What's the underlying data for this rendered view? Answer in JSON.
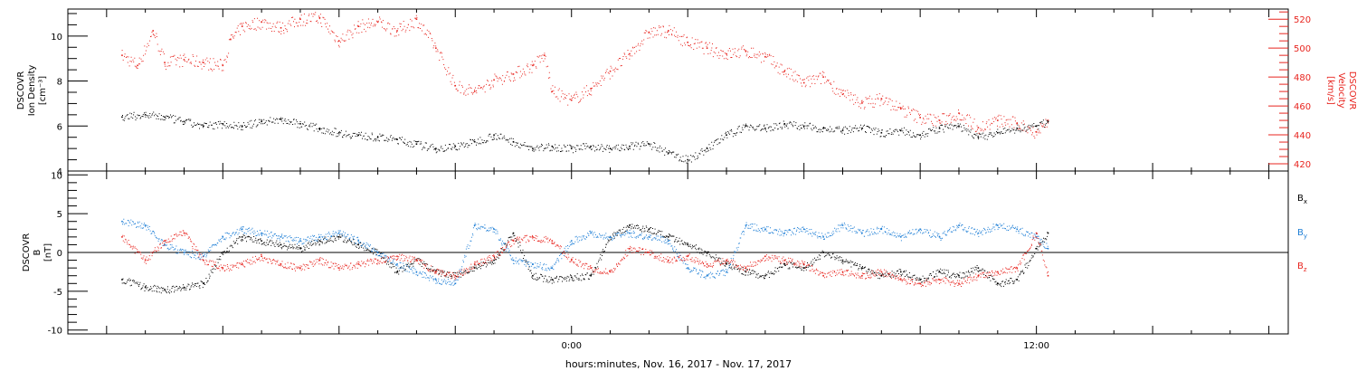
{
  "figure": {
    "xlabel": "hours:minutes, Nov. 16, 2017 - Nov. 17, 2017",
    "x_ticks": [
      "0:00",
      "12:00"
    ]
  },
  "chart_data": [
    {
      "type": "scatter",
      "panel": "top",
      "ylabel_left": [
        "DSCOVR",
        "Ion Density",
        "[cm⁻³]"
      ],
      "ylabel_right": [
        "DSCOVR",
        "Velocity",
        "[km/s]"
      ],
      "ylim_left": [
        4,
        11.2
      ],
      "ylim_right": [
        415,
        527
      ],
      "yticks_left": [
        "4",
        "6",
        "8",
        "10"
      ],
      "yticks_right": [
        "420",
        "440",
        "460",
        "480",
        "500",
        "520"
      ],
      "x_range_hours": [
        -13,
        18.5
      ],
      "series": [
        {
          "role": "density",
          "axis": "left",
          "color": "#000000",
          "points": [
            [
              -11.6,
              6.4
            ],
            [
              -11.0,
              6.5
            ],
            [
              -10.5,
              6.4
            ],
            [
              -10.0,
              6.2
            ],
            [
              -9.5,
              6.0
            ],
            [
              -9.0,
              6.1
            ],
            [
              -8.5,
              6.0
            ],
            [
              -8.0,
              6.2
            ],
            [
              -7.5,
              6.3
            ],
            [
              -7.0,
              6.1
            ],
            [
              -6.5,
              5.9
            ],
            [
              -6.0,
              5.7
            ],
            [
              -5.5,
              5.6
            ],
            [
              -5.0,
              5.5
            ],
            [
              -4.5,
              5.4
            ],
            [
              -4.0,
              5.2
            ],
            [
              -3.5,
              5.0
            ],
            [
              -3.0,
              5.1
            ],
            [
              -2.5,
              5.3
            ],
            [
              -2.0,
              5.6
            ],
            [
              -1.5,
              5.3
            ],
            [
              -1.0,
              5.0
            ],
            [
              -0.5,
              5.1
            ],
            [
              0.0,
              5.0
            ],
            [
              0.5,
              5.1
            ],
            [
              1.0,
              5.0
            ],
            [
              1.5,
              5.1
            ],
            [
              2.0,
              5.2
            ],
            [
              2.5,
              4.8
            ],
            [
              3.0,
              4.5
            ],
            [
              3.5,
              5.0
            ],
            [
              4.0,
              5.6
            ],
            [
              4.5,
              6.0
            ],
            [
              5.0,
              5.9
            ],
            [
              5.5,
              6.1
            ],
            [
              6.0,
              6.0
            ],
            [
              6.5,
              5.9
            ],
            [
              7.0,
              5.8
            ],
            [
              7.5,
              5.9
            ],
            [
              8.0,
              5.7
            ],
            [
              8.5,
              5.8
            ],
            [
              9.0,
              5.6
            ],
            [
              9.5,
              5.9
            ],
            [
              10.0,
              6.0
            ],
            [
              10.5,
              5.5
            ],
            [
              11.0,
              5.7
            ],
            [
              11.5,
              5.9
            ],
            [
              12.0,
              6.0
            ],
            [
              12.3,
              6.2
            ]
          ]
        },
        {
          "role": "velocity",
          "axis": "right",
          "color": "#e8251f",
          "points": [
            [
              -11.6,
              495
            ],
            [
              -11.2,
              488
            ],
            [
              -10.8,
              512
            ],
            [
              -10.5,
              490
            ],
            [
              -10.0,
              492
            ],
            [
              -9.5,
              490
            ],
            [
              -9.0,
              488
            ],
            [
              -8.8,
              506
            ],
            [
              -8.5,
              515
            ],
            [
              -8.0,
              518
            ],
            [
              -7.5,
              514
            ],
            [
              -7.0,
              520
            ],
            [
              -6.5,
              521
            ],
            [
              -6.0,
              505
            ],
            [
              -5.5,
              515
            ],
            [
              -5.0,
              518
            ],
            [
              -4.5,
              512
            ],
            [
              -4.0,
              520
            ],
            [
              -3.5,
              500
            ],
            [
              -3.0,
              474
            ],
            [
              -2.5,
              470
            ],
            [
              -2.0,
              478
            ],
            [
              -1.5,
              482
            ],
            [
              -1.0,
              488
            ],
            [
              -0.7,
              495
            ],
            [
              -0.5,
              470
            ],
            [
              0.0,
              464
            ],
            [
              0.5,
              472
            ],
            [
              1.0,
              484
            ],
            [
              1.5,
              496
            ],
            [
              2.0,
              511
            ],
            [
              2.5,
              512
            ],
            [
              3.0,
              504
            ],
            [
              3.5,
              500
            ],
            [
              4.0,
              496
            ],
            [
              4.5,
              498
            ],
            [
              5.0,
              494
            ],
            [
              5.5,
              484
            ],
            [
              6.0,
              476
            ],
            [
              6.5,
              480
            ],
            [
              7.0,
              468
            ],
            [
              7.5,
              462
            ],
            [
              8.0,
              465
            ],
            [
              8.5,
              458
            ],
            [
              9.0,
              452
            ],
            [
              9.5,
              450
            ],
            [
              10.0,
              455
            ],
            [
              10.5,
              445
            ],
            [
              11.0,
              450
            ],
            [
              11.5,
              448
            ],
            [
              12.0,
              442
            ],
            [
              12.3,
              450
            ]
          ]
        }
      ]
    },
    {
      "type": "scatter",
      "panel": "bottom",
      "ylabel_left": [
        "DSCOVR",
        "B",
        "[nT]"
      ],
      "ylim": [
        -10.5,
        10.5
      ],
      "yticks": [
        "-10",
        "-5",
        "0",
        "5",
        "10"
      ],
      "x_range_hours": [
        -13,
        18.5
      ],
      "legend": "right",
      "series": [
        {
          "name": "Bx",
          "label_main": "B",
          "label_sub": "x",
          "color": "#000000",
          "points": [
            [
              -11.6,
              -3.5
            ],
            [
              -11.0,
              -4.5
            ],
            [
              -10.5,
              -4.8
            ],
            [
              -10.0,
              -4.5
            ],
            [
              -9.5,
              -4.0
            ],
            [
              -9.0,
              0.0
            ],
            [
              -8.5,
              2.0
            ],
            [
              -8.0,
              1.5
            ],
            [
              -7.5,
              1.0
            ],
            [
              -7.0,
              0.5
            ],
            [
              -6.5,
              1.5
            ],
            [
              -6.0,
              2.0
            ],
            [
              -5.5,
              1.0
            ],
            [
              -5.0,
              0.0
            ],
            [
              -4.5,
              -2.5
            ],
            [
              -4.0,
              -1.0
            ],
            [
              -3.5,
              -2.5
            ],
            [
              -3.0,
              -3.0
            ],
            [
              -2.5,
              -2.0
            ],
            [
              -2.0,
              -1.0
            ],
            [
              -1.5,
              2.5
            ],
            [
              -1.0,
              -3.0
            ],
            [
              -0.5,
              -3.5
            ],
            [
              0.0,
              -3.2
            ],
            [
              0.5,
              -3.0
            ],
            [
              1.0,
              2.0
            ],
            [
              1.5,
              3.5
            ],
            [
              2.0,
              3.0
            ],
            [
              2.5,
              2.0
            ],
            [
              3.0,
              1.0
            ],
            [
              3.5,
              0.0
            ],
            [
              4.0,
              -1.5
            ],
            [
              4.5,
              -2.5
            ],
            [
              5.0,
              -3.0
            ],
            [
              5.5,
              -1.5
            ],
            [
              6.0,
              -2.0
            ],
            [
              6.5,
              0.0
            ],
            [
              7.0,
              -1.0
            ],
            [
              7.5,
              -2.0
            ],
            [
              8.0,
              -3.0
            ],
            [
              8.5,
              -2.5
            ],
            [
              9.0,
              -3.5
            ],
            [
              9.5,
              -2.5
            ],
            [
              10.0,
              -3.0
            ],
            [
              10.5,
              -2.0
            ],
            [
              11.0,
              -4.0
            ],
            [
              11.5,
              -3.5
            ],
            [
              12.0,
              0.5
            ],
            [
              12.3,
              2.5
            ]
          ]
        },
        {
          "name": "By",
          "label_main": "B",
          "label_sub": "y",
          "color": "#1f7fd6",
          "points": [
            [
              -11.6,
              4.0
            ],
            [
              -11.0,
              3.5
            ],
            [
              -10.5,
              1.0
            ],
            [
              -10.0,
              0.0
            ],
            [
              -9.5,
              -0.5
            ],
            [
              -9.0,
              2.0
            ],
            [
              -8.5,
              3.0
            ],
            [
              -8.0,
              2.5
            ],
            [
              -7.5,
              2.0
            ],
            [
              -7.0,
              1.5
            ],
            [
              -6.5,
              2.0
            ],
            [
              -6.0,
              2.5
            ],
            [
              -5.5,
              1.5
            ],
            [
              -5.0,
              0.0
            ],
            [
              -4.5,
              -1.5
            ],
            [
              -4.0,
              -2.5
            ],
            [
              -3.5,
              -3.5
            ],
            [
              -3.0,
              -4.0
            ],
            [
              -2.5,
              3.5
            ],
            [
              -2.0,
              3.0
            ],
            [
              -1.5,
              -1.0
            ],
            [
              -1.0,
              -1.5
            ],
            [
              -0.5,
              -2.0
            ],
            [
              0.0,
              1.5
            ],
            [
              0.5,
              2.5
            ],
            [
              1.0,
              2.0
            ],
            [
              1.5,
              2.5
            ],
            [
              2.0,
              2.0
            ],
            [
              2.5,
              1.5
            ],
            [
              3.0,
              -2.0
            ],
            [
              3.5,
              -3.0
            ],
            [
              4.0,
              -2.5
            ],
            [
              4.5,
              3.5
            ],
            [
              5.0,
              3.0
            ],
            [
              5.5,
              2.5
            ],
            [
              6.0,
              3.0
            ],
            [
              6.5,
              2.0
            ],
            [
              7.0,
              3.5
            ],
            [
              7.5,
              2.5
            ],
            [
              8.0,
              3.0
            ],
            [
              8.5,
              2.0
            ],
            [
              9.0,
              3.0
            ],
            [
              9.5,
              2.0
            ],
            [
              10.0,
              3.5
            ],
            [
              10.5,
              2.5
            ],
            [
              11.0,
              3.5
            ],
            [
              11.5,
              3.0
            ],
            [
              12.0,
              2.0
            ],
            [
              12.3,
              0.5
            ]
          ]
        },
        {
          "name": "Bz",
          "label_main": "B",
          "label_sub": "z",
          "color": "#e8251f",
          "points": [
            [
              -11.6,
              2.0
            ],
            [
              -11.0,
              -1.0
            ],
            [
              -10.5,
              1.5
            ],
            [
              -10.0,
              2.5
            ],
            [
              -9.5,
              -1.0
            ],
            [
              -9.0,
              -2.0
            ],
            [
              -8.5,
              -1.5
            ],
            [
              -8.0,
              -0.5
            ],
            [
              -7.5,
              -1.5
            ],
            [
              -7.0,
              -2.0
            ],
            [
              -6.5,
              -1.0
            ],
            [
              -6.0,
              -2.0
            ],
            [
              -5.5,
              -1.5
            ],
            [
              -5.0,
              -1.0
            ],
            [
              -4.5,
              -0.5
            ],
            [
              -4.0,
              -1.0
            ],
            [
              -3.5,
              -2.5
            ],
            [
              -3.0,
              -3.0
            ],
            [
              -2.5,
              -1.5
            ],
            [
              -2.0,
              -0.5
            ],
            [
              -1.5,
              1.5
            ],
            [
              -1.0,
              2.0
            ],
            [
              -0.5,
              1.5
            ],
            [
              0.0,
              -1.0
            ],
            [
              0.5,
              -2.0
            ],
            [
              1.0,
              -2.5
            ],
            [
              1.5,
              0.5
            ],
            [
              2.0,
              0.0
            ],
            [
              2.5,
              -1.0
            ],
            [
              3.0,
              -0.5
            ],
            [
              3.5,
              -1.5
            ],
            [
              4.0,
              -1.0
            ],
            [
              4.5,
              -2.0
            ],
            [
              5.0,
              -0.5
            ],
            [
              5.5,
              -1.0
            ],
            [
              6.0,
              -1.5
            ],
            [
              6.5,
              -3.0
            ],
            [
              7.0,
              -2.5
            ],
            [
              7.5,
              -3.0
            ],
            [
              8.0,
              -2.5
            ],
            [
              8.5,
              -3.5
            ],
            [
              9.0,
              -4.0
            ],
            [
              9.5,
              -3.5
            ],
            [
              10.0,
              -4.0
            ],
            [
              10.5,
              -3.0
            ],
            [
              11.0,
              -2.5
            ],
            [
              11.5,
              -2.0
            ],
            [
              12.0,
              2.5
            ],
            [
              12.3,
              -3.0
            ]
          ]
        }
      ]
    }
  ]
}
